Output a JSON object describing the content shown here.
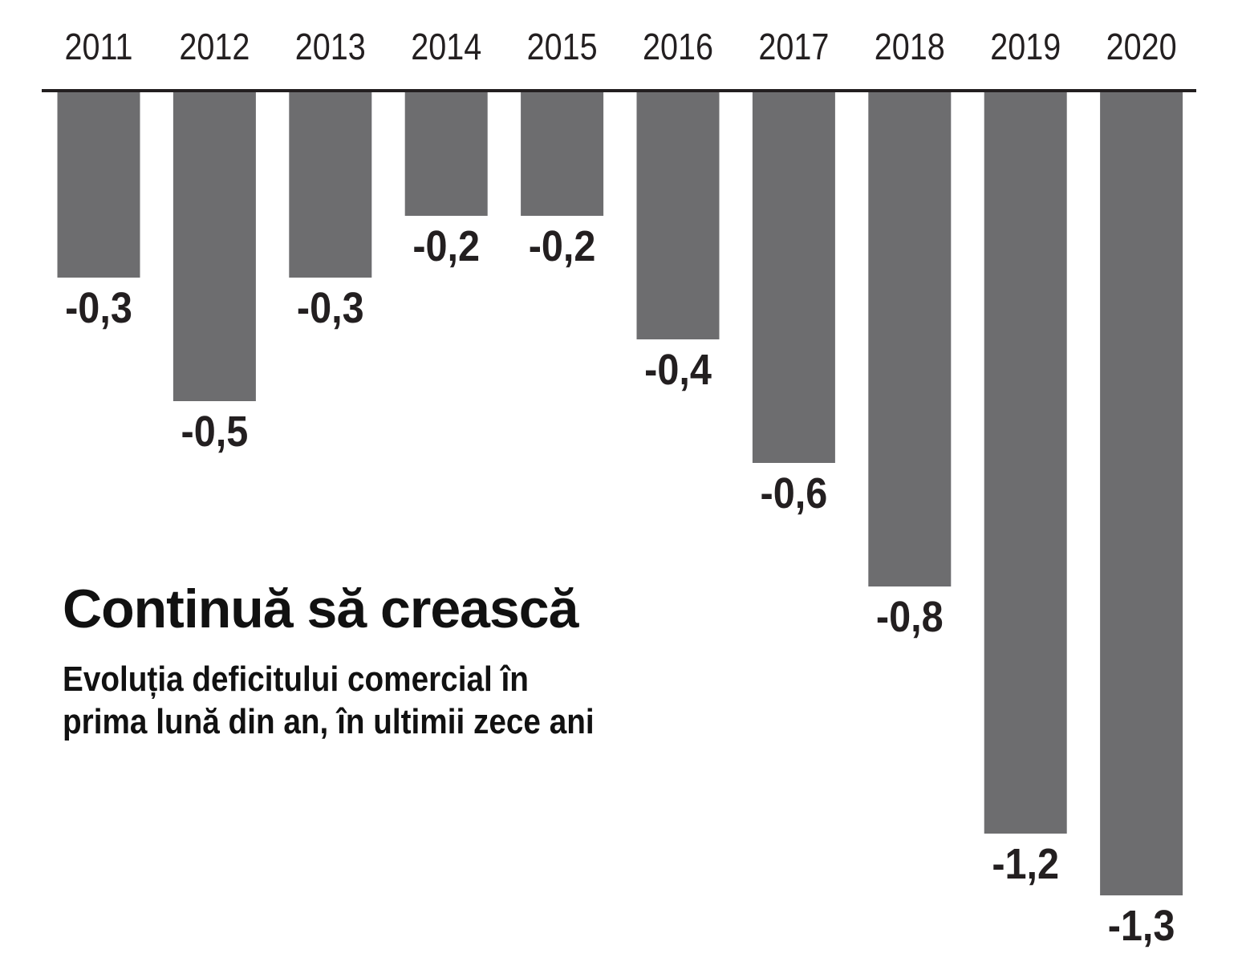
{
  "chart_data": {
    "type": "bar",
    "title": "Continuă să crească",
    "subtitle": "Evoluția deficitului comercial în prima lună din an, în ultimii zece ani",
    "categories": [
      "2011",
      "2012",
      "2013",
      "2014",
      "2015",
      "2016",
      "2017",
      "2018",
      "2019",
      "2020"
    ],
    "values": [
      -0.3,
      -0.5,
      -0.3,
      -0.2,
      -0.2,
      -0.4,
      -0.6,
      -0.8,
      -1.2,
      -1.3
    ],
    "value_labels": [
      "-0,3",
      "-0,5",
      "-0,3",
      "-0,2",
      "-0,2",
      "-0,4",
      "-0,6",
      "-0,8",
      "-1,2",
      "-1,3"
    ],
    "xlabel": "",
    "ylabel": "",
    "ylim": [
      -1.3,
      0
    ],
    "category_axis": "top",
    "grid": false,
    "legend": "none",
    "bar_color": "#6d6d6f",
    "axis_color": "#231f20",
    "text_color": "#231f20"
  }
}
